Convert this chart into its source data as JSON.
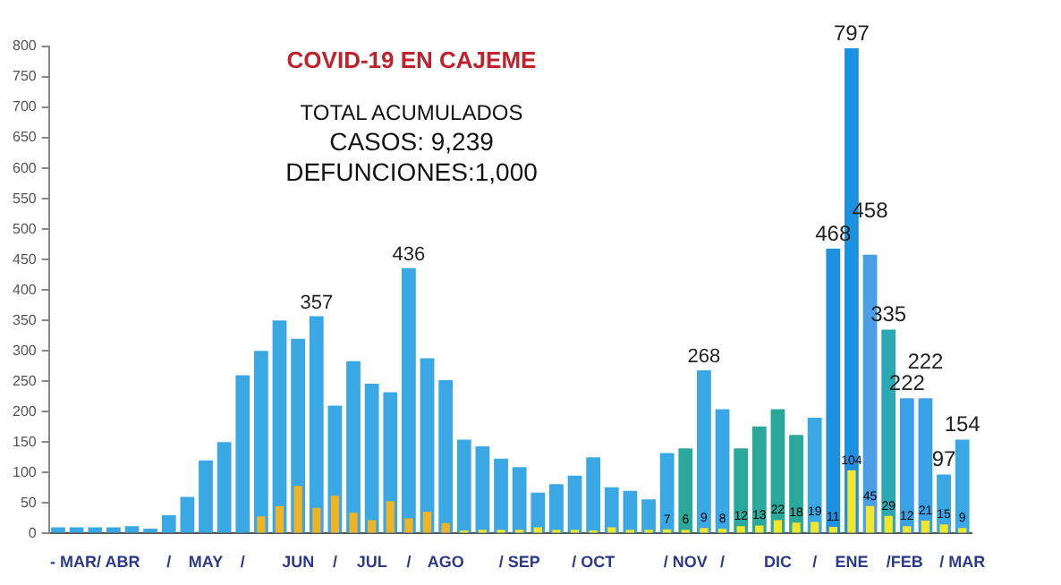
{
  "chart_data": {
    "type": "bar",
    "title": "COVID-19 EN CAJEME",
    "annotations": [
      "TOTAL ACUMULADOS",
      "CASOS: 9,239",
      "DEFUNCIONES:1,000"
    ],
    "categories": [
      null,
      null,
      "- MAR/ ABR",
      null,
      null,
      null,
      "/",
      null,
      "MAY",
      null,
      "/",
      null,
      null,
      "JUN",
      null,
      "/",
      null,
      "JUL",
      null,
      "/",
      null,
      "AGO",
      null,
      null,
      null,
      "/ SEP",
      null,
      null,
      null,
      "/ OCT",
      null,
      null,
      null,
      null,
      "/ NOV",
      null,
      "/",
      null,
      null,
      "DIC",
      null,
      "/",
      null,
      "ENE",
      null,
      "/",
      "FEB",
      null,
      null,
      "/ MAR"
    ],
    "series": [
      {
        "colors": [
          "#3aa8e4",
          "#3aa8e4",
          "#3aa8e4",
          "#3aa8e4",
          "#3aa8e4",
          "#3aa8e4",
          "#3aa8e4",
          "#3aa8e4",
          "#3aa8e4",
          "#3aa8e4",
          "#3aa8e4",
          "#3aa8e4",
          "#3aa8e4",
          "#3aa8e4",
          "#3aa8e4",
          "#3aa8e4",
          "#3aa8e4",
          "#3aa8e4",
          "#3aa8e4",
          "#3aa8e4",
          "#3aa8e4",
          "#3aa8e4",
          "#3aa8e4",
          "#3aa8e4",
          "#3aa8e4",
          "#3aa8e4",
          "#3aa8e4",
          "#3aa8e4",
          "#3aa8e4",
          "#3aa8e4",
          "#3aa8e4",
          "#3aa8e4",
          "#3aa8e4",
          "#3aa8e4",
          "#2aa89c",
          "#3aa8e4",
          "#3aa8e4",
          "#2aa89c",
          "#2aa89c",
          "#2aa89c",
          "#2aa89c",
          "#3aa8e4",
          "#1e90e0",
          "#1e90e0",
          "#4a9ee6",
          "#2aa8b4",
          "#3aa0e8",
          "#3aa0e8",
          "#3aa8e4",
          "#3aa8e4"
        ],
        "values": [
          10,
          10,
          10,
          10,
          12,
          8,
          30,
          60,
          120,
          150,
          260,
          300,
          350,
          320,
          357,
          210,
          283,
          246,
          232,
          436,
          288,
          252,
          154,
          143,
          123,
          109,
          67,
          81,
          95,
          125,
          76,
          70,
          56,
          132,
          140,
          268,
          204,
          140,
          176,
          204,
          162,
          190,
          468,
          797,
          458,
          335,
          222,
          222,
          97,
          154
        ],
        "value_labels": [
          null,
          null,
          null,
          null,
          null,
          null,
          null,
          null,
          null,
          null,
          null,
          null,
          null,
          null,
          "357",
          null,
          null,
          null,
          null,
          "436",
          null,
          null,
          null,
          null,
          null,
          null,
          null,
          null,
          null,
          null,
          null,
          null,
          null,
          null,
          null,
          "268",
          null,
          null,
          null,
          null,
          null,
          null,
          "468",
          "797",
          "458",
          "335",
          "222",
          "222",
          "97",
          "154"
        ]
      },
      {
        "colors": [
          "#f0b323",
          "#f0b323",
          "#f0b323",
          "#f0b323",
          "#f0b323",
          "#f0b323",
          "#f0b323",
          "#f0b323",
          "#f0b323",
          "#f0b323",
          "#f0b323",
          "#f0b323",
          "#f0b323",
          "#f0b323",
          "#f0b323",
          "#f0b323",
          "#f0b323",
          "#f0b323",
          "#f0b323",
          "#f0b323",
          "#f0b323",
          "#f0b323",
          "#f2e52a",
          "#f2e52a",
          "#f2e52a",
          "#f2e52a",
          "#f2e52a",
          "#f2e52a",
          "#f2e52a",
          "#f2e52a",
          "#f2e52a",
          "#f2e52a",
          "#f2e52a",
          "#f2e52a",
          "#f2e52a",
          "#f2e52a",
          "#f2e52a",
          "#f2e52a",
          "#f2e52a",
          "#f2e52a",
          "#f2e52a",
          "#f2e52a",
          "#f2e52a",
          "#f2e52a",
          "#f2e52a",
          "#f2e52a",
          "#f2e52a",
          "#f2e52a",
          "#f2e52a",
          "#f2e52a"
        ],
        "values": [
          null,
          null,
          null,
          null,
          null,
          null,
          null,
          null,
          null,
          null,
          null,
          28,
          45,
          78,
          42,
          62,
          34,
          22,
          53,
          25,
          36,
          17,
          5,
          6,
          6,
          6,
          10,
          6,
          6,
          5,
          10,
          6,
          6,
          7,
          6,
          9,
          8,
          12,
          13,
          22,
          18,
          19,
          11,
          104,
          45,
          29,
          12,
          21,
          15,
          9
        ],
        "value_labels": [
          null,
          null,
          null,
          null,
          null,
          null,
          null,
          null,
          null,
          null,
          null,
          null,
          null,
          null,
          null,
          null,
          null,
          null,
          null,
          null,
          null,
          null,
          null,
          null,
          null,
          null,
          null,
          null,
          null,
          null,
          null,
          null,
          null,
          "7",
          "6",
          "9",
          "8",
          "12",
          "13",
          "22",
          "18",
          "19",
          "11",
          "104",
          "45",
          "29",
          "12",
          "21",
          "15",
          "9"
        ]
      }
    ],
    "ylim": [
      0,
      800
    ],
    "yticks": [
      0,
      50,
      100,
      150,
      200,
      250,
      300,
      350,
      400,
      450,
      500,
      550,
      600,
      650,
      700,
      750,
      800
    ]
  }
}
